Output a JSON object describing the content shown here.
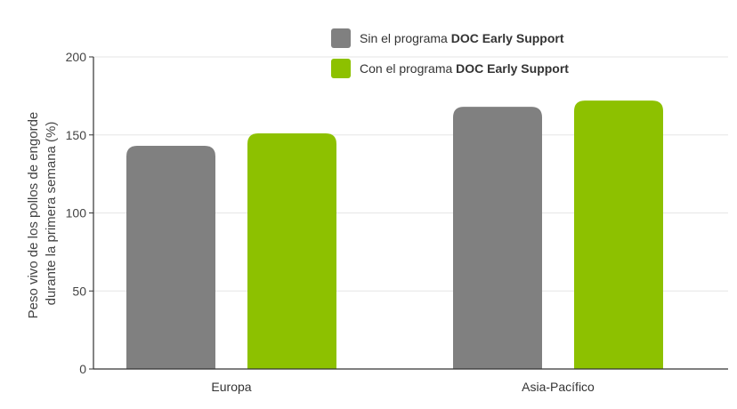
{
  "chart_data": {
    "type": "bar",
    "categories": [
      "Europa",
      "Asia-Pacífico"
    ],
    "series": [
      {
        "name_prefix": "Sin el programa ",
        "name_bold": "DOC Early Support",
        "color": "#808080",
        "values": [
          143,
          168
        ]
      },
      {
        "name_prefix": "Con el programa ",
        "name_bold": "DOC Early Support",
        "color": "#8dc100",
        "values": [
          151,
          172
        ]
      }
    ],
    "ylabel_lines": [
      "Peso vivo de los pollos de engorde",
      "durante la primera semana (%)"
    ],
    "ylim": [
      0,
      200
    ],
    "yticks": [
      0,
      50,
      100,
      150,
      200
    ],
    "grid": true,
    "legend_position": "top-center"
  }
}
